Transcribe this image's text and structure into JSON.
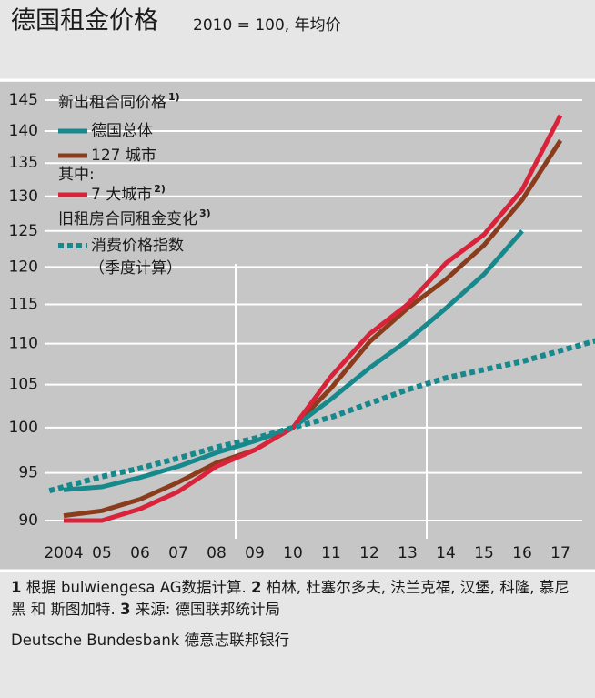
{
  "chart_data": {
    "type": "line",
    "title": "德国租金价格",
    "subtitle": "2010 = 100, 年均价",
    "log_scale": true,
    "grid": true,
    "xlim": [
      2003.5,
      2017.5
    ],
    "xticks": [
      {
        "value": 2004,
        "label": "2004"
      },
      {
        "value": 2005,
        "label": "05"
      },
      {
        "value": 2006,
        "label": "06"
      },
      {
        "value": 2007,
        "label": "07"
      },
      {
        "value": 2008,
        "label": "08"
      },
      {
        "value": 2009,
        "label": "09"
      },
      {
        "value": 2010,
        "label": "10"
      },
      {
        "value": 2011,
        "label": "11"
      },
      {
        "value": 2012,
        "label": "12"
      },
      {
        "value": 2013,
        "label": "13"
      },
      {
        "value": 2014,
        "label": "14"
      },
      {
        "value": 2015,
        "label": "15"
      },
      {
        "value": 2016,
        "label": "16"
      },
      {
        "value": 2017,
        "label": "17"
      }
    ],
    "x_separators": [
      2008.5,
      2013.5
    ],
    "ylim": [
      90,
      145
    ],
    "yticks": [
      90,
      95,
      100,
      105,
      110,
      115,
      120,
      125,
      130,
      135,
      140,
      145
    ],
    "legend_headings": [
      {
        "text": "新出租合同价格",
        "note": "1)"
      },
      {
        "text": "其中:"
      },
      {
        "text": "旧租房合同租金变化",
        "note": "3)"
      }
    ],
    "series": [
      {
        "name": "德国总体",
        "color": "#17898c",
        "x": [
          2004,
          2005,
          2006,
          2007,
          2008,
          2009,
          2010,
          2011,
          2012,
          2013,
          2014,
          2015,
          2016
        ],
        "values": [
          93.2,
          93.5,
          94.5,
          95.7,
          97.2,
          98.5,
          100,
          103.3,
          107,
          110.4,
          114.5,
          119,
          125
        ]
      },
      {
        "name": "127 城市",
        "color": "#8b3c1c",
        "x": [
          2004,
          2005,
          2006,
          2007,
          2008,
          2009,
          2010,
          2011,
          2012,
          2013,
          2014,
          2015,
          2016,
          2017
        ],
        "values": [
          90.5,
          91,
          92.2,
          94,
          96.1,
          97.5,
          100,
          104.6,
          110.2,
          114.5,
          118.3,
          123,
          129.5,
          138.5
        ]
      },
      {
        "name": "7 大城市",
        "note": "2)",
        "color": "#d8233a",
        "x": [
          2004,
          2005,
          2006,
          2007,
          2008,
          2009,
          2010,
          2011,
          2012,
          2013,
          2014,
          2015,
          2016,
          2017
        ],
        "values": [
          90,
          90,
          91.2,
          93,
          95.7,
          97.5,
          100,
          106,
          111.2,
          115,
          120.5,
          124.5,
          131,
          142.5
        ]
      },
      {
        "name": "消费价格指数",
        "sub_name": "（季度计算）",
        "color": "#17898c",
        "dashed": true,
        "x": [
          2003.625,
          2005,
          2006,
          2007,
          2008,
          2009,
          2010,
          2011,
          2012,
          2013,
          2014,
          2015,
          2016,
          2017.95
        ],
        "values": [
          93.1,
          94.6,
          95.5,
          96.6,
          97.8,
          98.8,
          100,
          101.2,
          102.8,
          104.4,
          105.8,
          106.8,
          107.8,
          110.4
        ]
      }
    ],
    "footnotes": [
      {
        "number": "1",
        "text": "根据 bulwiengesa AG数据计算."
      },
      {
        "number": "2",
        "text": "柏林, 杜塞尔多夫, 法兰克福, 汉堡, 科隆, 慕尼黑 和 斯图加特."
      },
      {
        "number": "3",
        "text": "来源: 德国联邦统计局"
      }
    ],
    "source": "Deutsche Bundesbank 德意志联邦银行"
  }
}
